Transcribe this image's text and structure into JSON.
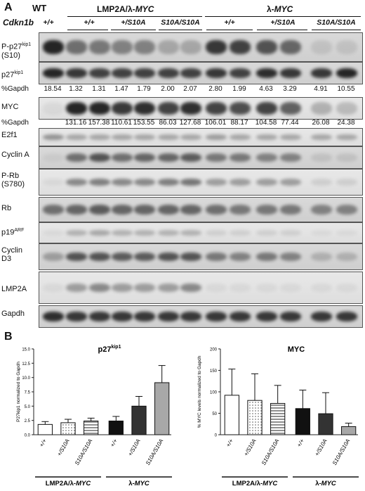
{
  "panel_a": {
    "label": "A",
    "wt_label": "WT",
    "cdkn1b_label": "Cdkn1b",
    "wt_genotype": "+/+",
    "groups": [
      {
        "title_prefix": "LMP2A/λ-",
        "title_italic": "MYC",
        "genotypes": [
          "+/+",
          "+/S10A",
          "S10A/S10A"
        ]
      },
      {
        "title_prefix": "λ-",
        "title_italic": "MYC",
        "genotypes": [
          "+/+",
          "+/S10A",
          "S10A/S10A"
        ]
      }
    ],
    "rows": {
      "pp27_line1": "P-p27",
      "pp27_sup": "kip1",
      "pp27_line2": "(S10)",
      "p27": "p27",
      "p27_sup": "kip1",
      "gapdh_pct_label": "%Gapdh",
      "myc": "MYC",
      "myc_pct_label": "%Gapdh",
      "e2f1": "E2f1",
      "cyclina": "Cyclin A",
      "prb_line1": "P-Rb",
      "prb_line2": "(S780)",
      "rb": "Rb",
      "p19": "p19",
      "p19_sup": "ARF",
      "cycd3_line1": "Cyclin",
      "cycd3_line2": "D3",
      "lmp2a": "LMP2A",
      "gapdh": "Gapdh"
    },
    "p27_pct_values": [
      "18.54",
      "1.32",
      "1.31",
      "1.47",
      "1.79",
      "2.00",
      "2.07",
      "2.80",
      "1.99",
      "4.63",
      "3.29",
      "4.91",
      "10.55"
    ],
    "myc_pct_values": [
      "131.16",
      "157.38",
      "110.61",
      "153.55",
      "86.03",
      "127.68",
      "106.01",
      "88.17",
      "104.58",
      "77.44",
      "26.08",
      "24.38"
    ]
  },
  "panel_b": {
    "label": "B"
  },
  "chart_data": [
    {
      "type": "bar",
      "title": "p27",
      "title_sup": "kip1",
      "ylabel": "P27kip1 normalized to Gapdh",
      "ylim": [
        0,
        15
      ],
      "yticks": [
        "0.0",
        "2.5",
        "5.0",
        "7.5",
        "10.0",
        "12.5",
        "15.0"
      ],
      "categories": [
        "+/+",
        "+/S10A",
        "S10A/S10A",
        "+/+",
        "+/S10A",
        "S10A/S10A"
      ],
      "values": [
        1.8,
        2.1,
        2.4,
        2.4,
        5.0,
        9.1
      ],
      "errors": [
        0.5,
        0.6,
        0.5,
        0.8,
        1.7,
        3.0
      ],
      "group_labels": [
        {
          "prefix": "LMP2A/λ-",
          "italic": "MYC"
        },
        {
          "prefix": "λ-",
          "italic": "MYC"
        }
      ],
      "colors": [
        "#ffffff",
        "#ffffff",
        "#ffffff",
        "#111111",
        "#333333",
        "#a8a8a8"
      ],
      "patterns": [
        "none",
        "dots",
        "hlines",
        "none",
        "none",
        "none"
      ]
    },
    {
      "type": "bar",
      "title": "MYC",
      "ylabel": "% MYC levels normalized to Gapdh",
      "ylim": [
        0,
        200
      ],
      "yticks": [
        "0",
        "50",
        "100",
        "150",
        "200"
      ],
      "categories": [
        "+/+",
        "+/S10A",
        "S10A/S10A",
        "+/+",
        "+/S10A",
        "S10A/S10A"
      ],
      "values": [
        92,
        80,
        73,
        61,
        49,
        19
      ],
      "errors": [
        61,
        62,
        42,
        43,
        49,
        8
      ],
      "group_labels": [
        {
          "prefix": "LMP2A/λ-",
          "italic": "MYC"
        },
        {
          "prefix": "λ-",
          "italic": "MYC"
        }
      ],
      "colors": [
        "#ffffff",
        "#ffffff",
        "#ffffff",
        "#111111",
        "#333333",
        "#a8a8a8"
      ],
      "patterns": [
        "none",
        "dots",
        "hlines",
        "none",
        "none",
        "none"
      ]
    }
  ]
}
